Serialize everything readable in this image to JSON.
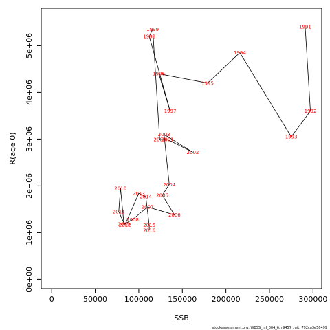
{
  "chart_data": {
    "type": "line",
    "xlabel": "SSB",
    "ylabel": "R(age 0)",
    "xlim": [
      -12000,
      310000
    ],
    "ylim": [
      -200000,
      5800000
    ],
    "x_ticks": [
      0,
      50000,
      100000,
      150000,
      200000,
      250000,
      300000
    ],
    "x_tick_labels": [
      "0",
      "50000",
      "100000",
      "150000",
      "200000",
      "250000",
      "300000"
    ],
    "y_ticks": [
      0,
      1000000,
      2000000,
      3000000,
      4000000,
      5000000
    ],
    "y_tick_labels": [
      "0e+00",
      "1e+06",
      "2e+06",
      "3e+06",
      "4e+06",
      "5e+06"
    ],
    "line_color": "#000000",
    "label_color": "#ff0000",
    "points": [
      {
        "year": "1991",
        "x": 291000,
        "y": 5400000
      },
      {
        "year": "1992",
        "x": 297000,
        "y": 3600000
      },
      {
        "year": "1993",
        "x": 275000,
        "y": 3050000
      },
      {
        "year": "1994",
        "x": 216000,
        "y": 4850000
      },
      {
        "year": "1995",
        "x": 179000,
        "y": 4200000
      },
      {
        "year": "1996",
        "x": 123000,
        "y": 4400000
      },
      {
        "year": "1997",
        "x": 136000,
        "y": 3600000
      },
      {
        "year": "1998",
        "x": 112000,
        "y": 5200000
      },
      {
        "year": "1999",
        "x": 116000,
        "y": 5350000
      },
      {
        "year": "2000",
        "x": 124000,
        "y": 2990000
      },
      {
        "year": "2001",
        "x": 133000,
        "y": 2990000
      },
      {
        "year": "2002",
        "x": 162000,
        "y": 2720000
      },
      {
        "year": "2003",
        "x": 129000,
        "y": 3100000
      },
      {
        "year": "2004",
        "x": 135000,
        "y": 2030000
      },
      {
        "year": "2005",
        "x": 127000,
        "y": 1800000
      },
      {
        "year": "2006",
        "x": 141000,
        "y": 1380000
      },
      {
        "year": "2007",
        "x": 110000,
        "y": 1550000
      },
      {
        "year": "2008",
        "x": 93000,
        "y": 1280000
      },
      {
        "year": "2009",
        "x": 83000,
        "y": 1180000
      },
      {
        "year": "2010",
        "x": 79000,
        "y": 1950000
      },
      {
        "year": "2011",
        "x": 77000,
        "y": 1450000
      },
      {
        "year": "2012",
        "x": 84000,
        "y": 1160000
      },
      {
        "year": "2013",
        "x": 100000,
        "y": 1840000
      },
      {
        "year": "2014",
        "x": 108000,
        "y": 1770000
      },
      {
        "year": "2015",
        "x": 112000,
        "y": 1160000
      },
      {
        "year": "2016",
        "x": 112000,
        "y": 1050000
      }
    ]
  },
  "footer": "stockassessment.org, WBSS_mf_004_6, r9457 , git: 792ca3e56499"
}
